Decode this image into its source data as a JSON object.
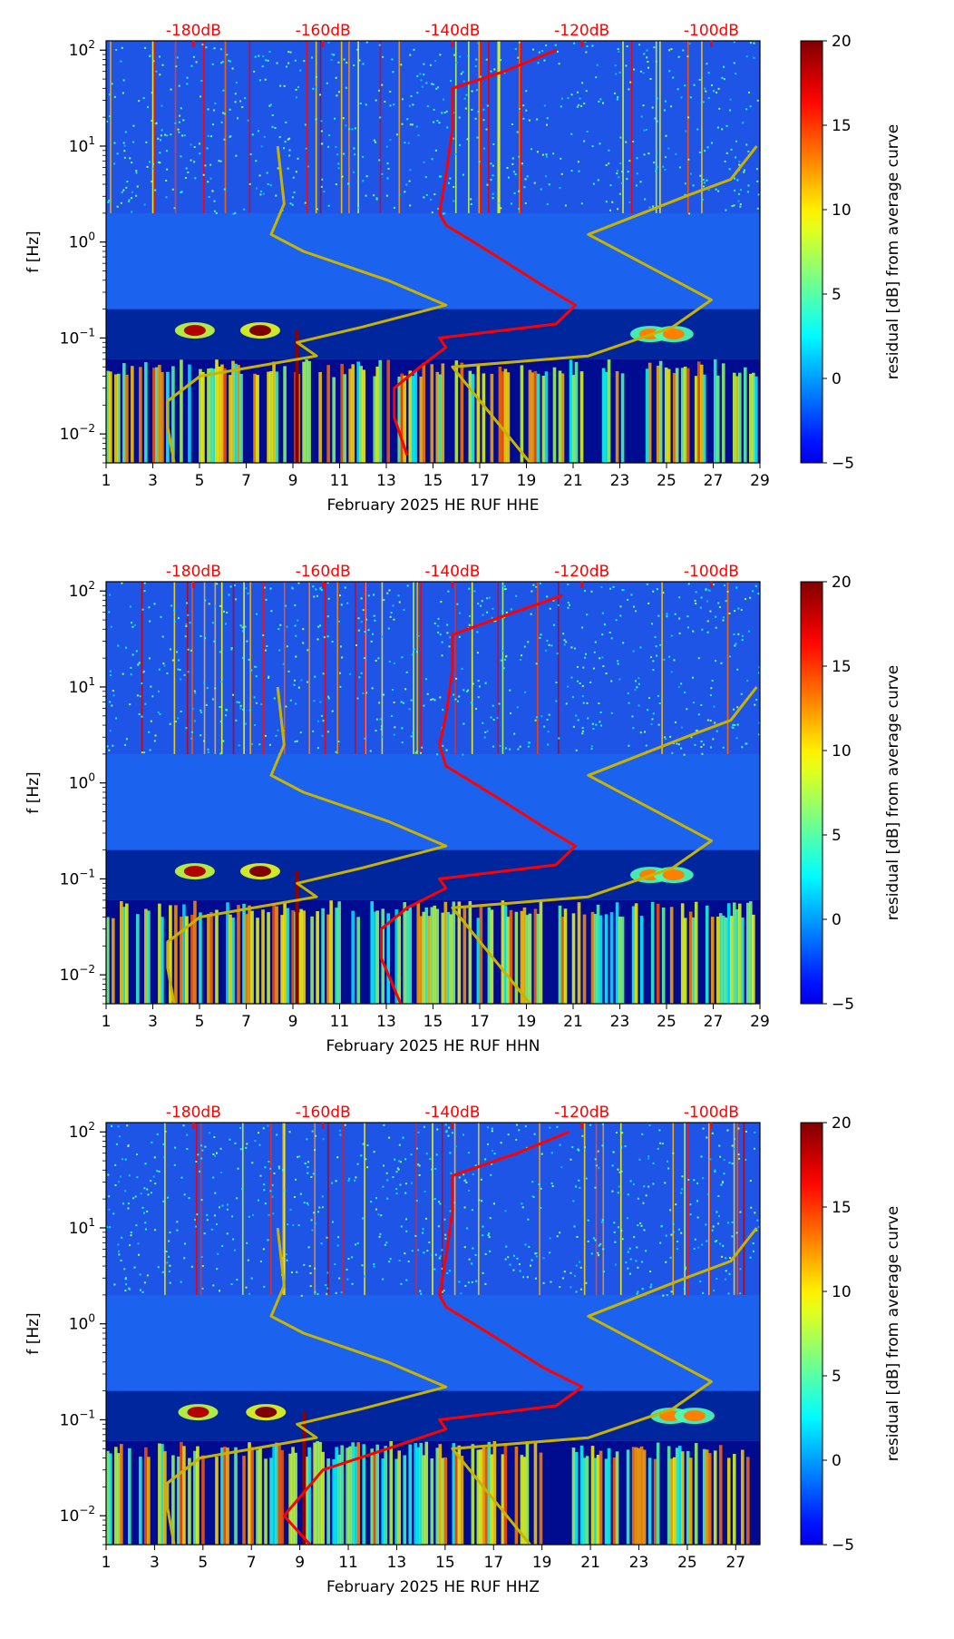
{
  "chart_data": [
    {
      "type": "heatmap",
      "title": "",
      "xlabel": "February 2025 HE RUF  HHE",
      "ylabel": "f [Hz]",
      "x_ticks": [
        "1",
        "3",
        "5",
        "7",
        "9",
        "11",
        "13",
        "15",
        "17",
        "19",
        "21",
        "23",
        "25",
        "27",
        "29"
      ],
      "xlim": [
        1,
        29
      ],
      "y_scale": "log",
      "ylim": [
        0.005,
        125
      ],
      "y_ticks": [
        {
          "exp": "2",
          "value": 100
        },
        {
          "exp": "1",
          "value": 10
        },
        {
          "exp": "0",
          "value": 1
        },
        {
          "exp": "−1",
          "value": 0.1
        },
        {
          "exp": "−2",
          "value": 0.01
        }
      ],
      "top_axis_labels": [
        "-180dB",
        "-160dB",
        "-140dB",
        "-120dB",
        "-100dB"
      ],
      "top_axis_values_db": [
        -180,
        -160,
        -140,
        -120,
        -100
      ],
      "colorbar": {
        "label": "residual [dB] from average curve",
        "ticks": [
          "20",
          "15",
          "10",
          "5",
          "0",
          "−5"
        ],
        "range": [
          -5,
          20
        ],
        "colormap": "jet"
      },
      "series": [
        {
          "name": "median PSD (red)",
          "color": "#ff0000",
          "points_db_vs_hz": [
            [
              -124,
              100
            ],
            [
              -132,
              60
            ],
            [
              -140,
              40
            ],
            [
              -140,
              15
            ],
            [
              -141,
              5
            ],
            [
              -142,
              2
            ],
            [
              -141,
              1.5
            ],
            [
              -133,
              0.7
            ],
            [
              -126,
              0.35
            ],
            [
              -121,
              0.22
            ],
            [
              -124,
              0.14
            ],
            [
              -142,
              0.1
            ],
            [
              -141,
              0.08
            ],
            [
              -145,
              0.05
            ],
            [
              -149,
              0.03
            ],
            [
              -149,
              0.015
            ],
            [
              -147,
              0.006
            ]
          ]
        },
        {
          "name": "low noise model (yellow)",
          "color": "#c8b400",
          "points_db_vs_hz": [
            [
              -167,
              10
            ],
            [
              -166,
              2.5
            ],
            [
              -168,
              1.2
            ],
            [
              -163,
              0.8
            ],
            [
              -150,
              0.4
            ],
            [
              -141,
              0.22
            ],
            [
              -154,
              0.13
            ],
            [
              -164,
              0.09
            ],
            [
              -161,
              0.065
            ],
            [
              -179,
              0.04
            ],
            [
              -184,
              0.022
            ],
            [
              -184,
              0.012
            ],
            [
              -183,
              0.005
            ]
          ]
        },
        {
          "name": "high noise model (yellow)",
          "color": "#c8b400",
          "points_db_vs_hz": [
            [
              -93,
              10
            ],
            [
              -97,
              4.5
            ],
            [
              -104,
              3
            ],
            [
              -119,
              1.2
            ],
            [
              -100,
              0.25
            ],
            [
              -106,
              0.13
            ],
            [
              -119,
              0.065
            ],
            [
              -140,
              0.05
            ],
            [
              -128,
              0.005
            ]
          ]
        }
      ]
    },
    {
      "type": "heatmap",
      "title": "",
      "xlabel": "February 2025 HE RUF  HHN",
      "ylabel": "f [Hz]",
      "x_ticks": [
        "1",
        "3",
        "5",
        "7",
        "9",
        "11",
        "13",
        "15",
        "17",
        "19",
        "21",
        "23",
        "25",
        "27",
        "29"
      ],
      "xlim": [
        1,
        29
      ],
      "y_scale": "log",
      "ylim": [
        0.005,
        125
      ],
      "y_ticks": [
        {
          "exp": "2",
          "value": 100
        },
        {
          "exp": "1",
          "value": 10
        },
        {
          "exp": "0",
          "value": 1
        },
        {
          "exp": "−1",
          "value": 0.1
        },
        {
          "exp": "−2",
          "value": 0.01
        }
      ],
      "top_axis_labels": [
        "-180dB",
        "-160dB",
        "-140dB",
        "-120dB",
        "-100dB"
      ],
      "top_axis_values_db": [
        -180,
        -160,
        -140,
        -120,
        -100
      ],
      "colorbar": {
        "label": "residual [dB] from average curve",
        "ticks": [
          "20",
          "15",
          "10",
          "5",
          "0",
          "−5"
        ],
        "range": [
          -5,
          20
        ],
        "colormap": "jet"
      },
      "series": [
        {
          "name": "median PSD (red)",
          "color": "#ff0000",
          "points_db_vs_hz": [
            [
              -123,
              90
            ],
            [
              -132,
              55
            ],
            [
              -140,
              35
            ],
            [
              -140,
              15
            ],
            [
              -141,
              5
            ],
            [
              -142,
              2.5
            ],
            [
              -141,
              1.5
            ],
            [
              -133,
              0.7
            ],
            [
              -126,
              0.35
            ],
            [
              -121,
              0.22
            ],
            [
              -124,
              0.14
            ],
            [
              -142,
              0.1
            ],
            [
              -141,
              0.08
            ],
            [
              -147,
              0.05
            ],
            [
              -151,
              0.03
            ],
            [
              -151,
              0.015
            ],
            [
              -148,
              0.005
            ]
          ]
        },
        {
          "name": "low noise model (yellow)",
          "color": "#c8b400",
          "points_db_vs_hz": [
            [
              -167,
              10
            ],
            [
              -166,
              2.5
            ],
            [
              -168,
              1.2
            ],
            [
              -163,
              0.8
            ],
            [
              -150,
              0.4
            ],
            [
              -141,
              0.22
            ],
            [
              -154,
              0.13
            ],
            [
              -164,
              0.09
            ],
            [
              -161,
              0.065
            ],
            [
              -179,
              0.04
            ],
            [
              -184,
              0.022
            ],
            [
              -184,
              0.012
            ],
            [
              -183,
              0.005
            ]
          ]
        },
        {
          "name": "high noise model (yellow)",
          "color": "#c8b400",
          "points_db_vs_hz": [
            [
              -93,
              10
            ],
            [
              -97,
              4.5
            ],
            [
              -104,
              3
            ],
            [
              -119,
              1.2
            ],
            [
              -100,
              0.25
            ],
            [
              -106,
              0.13
            ],
            [
              -119,
              0.065
            ],
            [
              -140,
              0.05
            ],
            [
              -128,
              0.005
            ]
          ]
        }
      ]
    },
    {
      "type": "heatmap",
      "title": "",
      "xlabel": "February 2025 HE RUF  HHZ",
      "ylabel": "f [Hz]",
      "x_ticks": [
        "1",
        "3",
        "5",
        "7",
        "9",
        "11",
        "13",
        "15",
        "17",
        "19",
        "21",
        "23",
        "25",
        "27"
      ],
      "xlim": [
        1,
        28
      ],
      "y_scale": "log",
      "ylim": [
        0.005,
        125
      ],
      "y_ticks": [
        {
          "exp": "2",
          "value": 100
        },
        {
          "exp": "1",
          "value": 10
        },
        {
          "exp": "0",
          "value": 1
        },
        {
          "exp": "−1",
          "value": 0.1
        },
        {
          "exp": "−2",
          "value": 0.01
        }
      ],
      "top_axis_labels": [
        "-180dB",
        "-160dB",
        "-140dB",
        "-120dB",
        "-100dB"
      ],
      "top_axis_values_db": [
        -180,
        -160,
        -140,
        -120,
        -100
      ],
      "colorbar": {
        "label": "residual [dB] from average curve",
        "ticks": [
          "20",
          "15",
          "10",
          "5",
          "0",
          "−5"
        ],
        "range": [
          -5,
          20
        ],
        "colormap": "jet"
      },
      "series": [
        {
          "name": "median PSD (red)",
          "color": "#ff0000",
          "points_db_vs_hz": [
            [
              -122,
              100
            ],
            [
              -130,
              60
            ],
            [
              -140,
              35
            ],
            [
              -140,
              15
            ],
            [
              -141,
              5
            ],
            [
              -142,
              2
            ],
            [
              -141,
              1.5
            ],
            [
              -133,
              0.7
            ],
            [
              -126,
              0.35
            ],
            [
              -120,
              0.22
            ],
            [
              -124,
              0.14
            ],
            [
              -142,
              0.1
            ],
            [
              -141,
              0.08
            ],
            [
              -150,
              0.05
            ],
            [
              -160,
              0.03
            ],
            [
              -166,
              0.01
            ],
            [
              -162,
              0.005
            ]
          ]
        },
        {
          "name": "low noise model (yellow)",
          "color": "#c8b400",
          "points_db_vs_hz": [
            [
              -167,
              10
            ],
            [
              -166,
              2.5
            ],
            [
              -168,
              1.2
            ],
            [
              -163,
              0.8
            ],
            [
              -150,
              0.4
            ],
            [
              -141,
              0.22
            ],
            [
              -154,
              0.13
            ],
            [
              -164,
              0.09
            ],
            [
              -161,
              0.065
            ],
            [
              -179,
              0.04
            ],
            [
              -184,
              0.022
            ],
            [
              -184,
              0.012
            ],
            [
              -183,
              0.005
            ]
          ]
        },
        {
          "name": "high noise model (yellow)",
          "color": "#c8b400",
          "points_db_vs_hz": [
            [
              -93,
              10
            ],
            [
              -97,
              4.5
            ],
            [
              -104,
              3
            ],
            [
              -119,
              1.2
            ],
            [
              -100,
              0.25
            ],
            [
              -106,
              0.13
            ],
            [
              -119,
              0.065
            ],
            [
              -140,
              0.05
            ],
            [
              -128,
              0.005
            ]
          ]
        }
      ]
    }
  ]
}
